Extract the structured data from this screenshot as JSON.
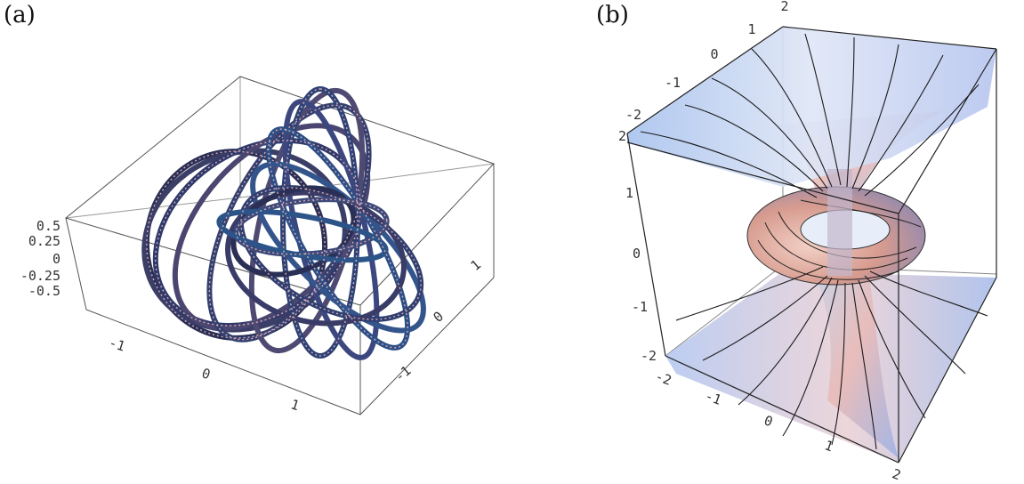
{
  "panels": [
    {
      "label": "(a)",
      "z_ticks": [
        "0.5",
        "0.25",
        "0",
        "-0.25",
        "-0.5"
      ],
      "x_ticks": [
        "-1",
        "0",
        "1"
      ],
      "y_ticks": [
        "1",
        "0",
        "-1"
      ]
    },
    {
      "label": "(b)",
      "z_ticks": [
        "2",
        "1",
        "0",
        "-1",
        "-2"
      ],
      "top_ticks": [
        "2",
        "1",
        "0",
        "-1",
        "-2"
      ],
      "x_ticks": [
        "-2",
        "-1",
        "0",
        "1",
        "2"
      ]
    }
  ],
  "colors": {
    "ring_dark": "#2a2f55",
    "ring_light": "#c89aa8",
    "surface_blue": "#9fb6e6",
    "surface_pink": "#e9b7b3"
  }
}
